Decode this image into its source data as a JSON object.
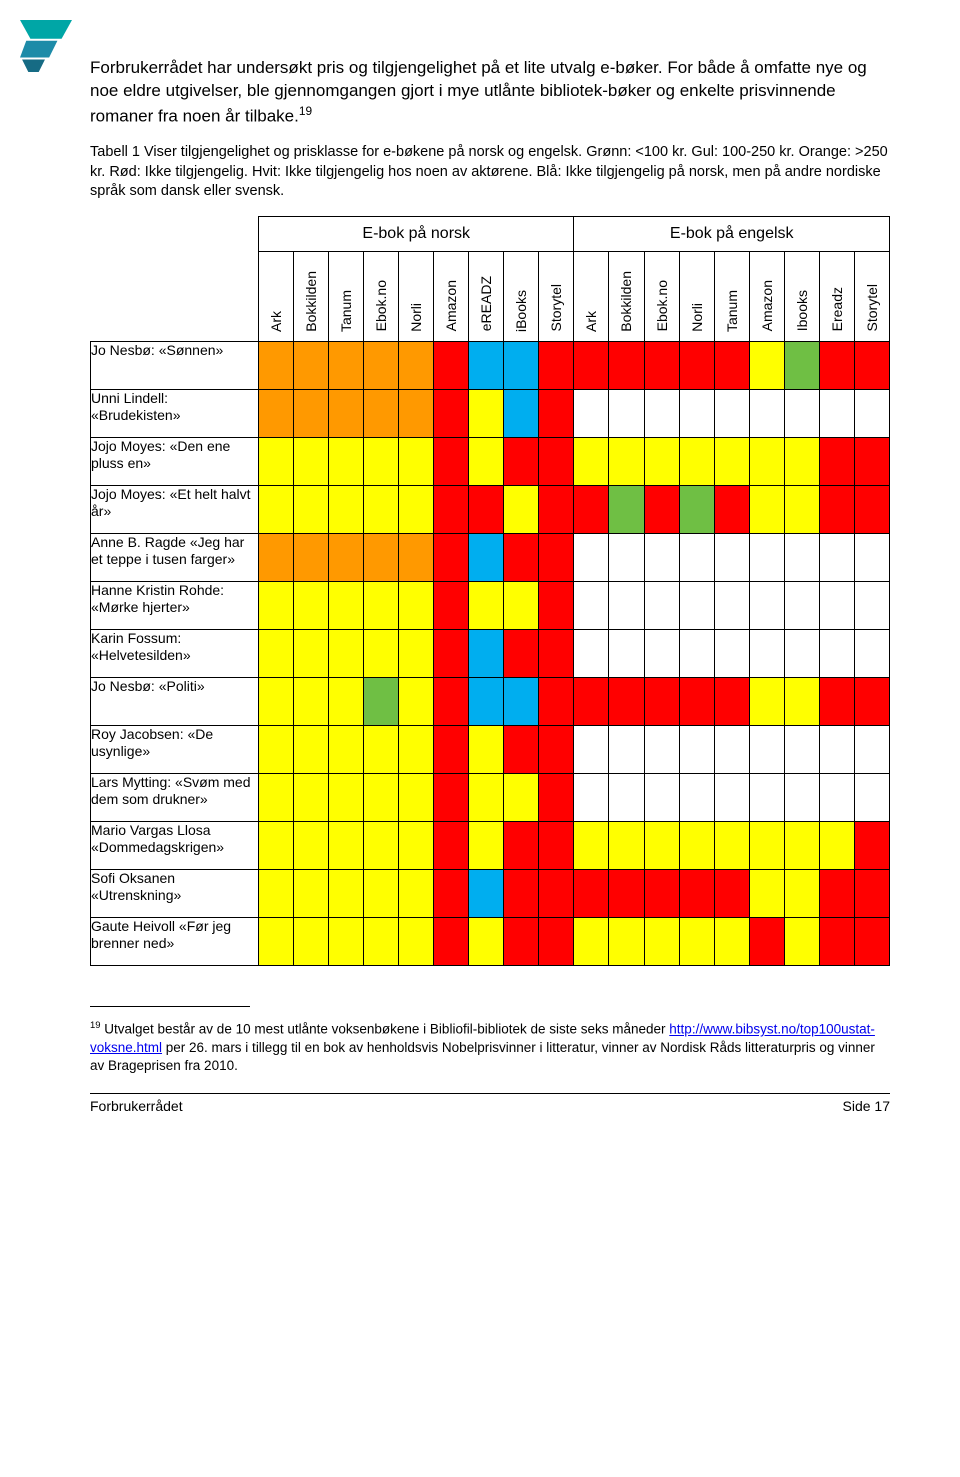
{
  "intro": "Forbrukerrådet har undersøkt pris og tilgjengelighet på et lite utvalg e-bøker. For både å omfatte nye og noe eldre utgivelser, ble gjennomgangen gjort i mye utlånte bibliotek-bøker og enkelte prisvinnende romaner fra noen år tilbake.",
  "intro_sup": "19",
  "caption": "Tabell 1 Viser tilgjengelighet og prisklasse for e-bøkene på norsk og engelsk. Grønn: <100 kr. Gul: 100-250 kr. Orange: >250 kr. Rød: Ikke tilgjengelig. Hvit: Ikke tilgjengelig hos noen av aktørene. Blå: Ikke tilgjengelig på norsk, men på andre nordiske språk som dansk eller svensk.",
  "group_norsk": "E-bok på norsk",
  "group_engelsk": "E-bok på engelsk",
  "columns_norsk": [
    "Ark",
    "Bokkilden",
    "Tanum",
    "Ebok.no",
    "Norli",
    "Amazon",
    "eREADZ",
    "iBooks",
    "Storytel"
  ],
  "columns_engelsk": [
    "Ark",
    "Bokkilden",
    "Ebok.no",
    "Norli",
    "Tanum",
    "Amazon",
    "Ibooks",
    "Ereadz",
    "Storytel"
  ],
  "colors": {
    "green": "#6fbf44",
    "yellow": "#ffff00",
    "orange": "#ff9900",
    "red": "#ff0000",
    "white": "#ffffff",
    "blue": "#00aeef"
  },
  "rows": [
    {
      "label": "Jo Nesbø: «Sønnen»",
      "cells": [
        "orange",
        "orange",
        "orange",
        "orange",
        "orange",
        "red",
        "blue",
        "blue",
        "red",
        "red",
        "red",
        "red",
        "red",
        "red",
        "yellow",
        "green",
        "red",
        "red"
      ]
    },
    {
      "label": "Unni Lindell: «Brudekisten»",
      "cells": [
        "orange",
        "orange",
        "orange",
        "orange",
        "orange",
        "red",
        "yellow",
        "blue",
        "red",
        "white",
        "white",
        "white",
        "white",
        "white",
        "white",
        "white",
        "white",
        "white"
      ]
    },
    {
      "label": "Jojo Moyes: «Den ene pluss en»",
      "cells": [
        "yellow",
        "yellow",
        "yellow",
        "yellow",
        "yellow",
        "red",
        "yellow",
        "red",
        "red",
        "yellow",
        "yellow",
        "yellow",
        "yellow",
        "yellow",
        "yellow",
        "yellow",
        "red",
        "red"
      ]
    },
    {
      "label": "Jojo Moyes: «Et helt halvt år»",
      "cells": [
        "yellow",
        "yellow",
        "yellow",
        "yellow",
        "yellow",
        "red",
        "red",
        "yellow",
        "red",
        "red",
        "green",
        "red",
        "green",
        "red",
        "yellow",
        "yellow",
        "red",
        "red"
      ]
    },
    {
      "label": "Anne B. Ragde «Jeg har et teppe i tusen farger»",
      "cells": [
        "orange",
        "orange",
        "orange",
        "orange",
        "orange",
        "red",
        "blue",
        "red",
        "red",
        "white",
        "white",
        "white",
        "white",
        "white",
        "white",
        "white",
        "white",
        "white"
      ]
    },
    {
      "label": "Hanne Kristin Rohde: «Mørke hjerter»",
      "cells": [
        "yellow",
        "yellow",
        "yellow",
        "yellow",
        "yellow",
        "red",
        "yellow",
        "yellow",
        "red",
        "white",
        "white",
        "white",
        "white",
        "white",
        "white",
        "white",
        "white",
        "white"
      ]
    },
    {
      "label": "Karin Fossum: «Helvetesilden»",
      "cells": [
        "yellow",
        "yellow",
        "yellow",
        "yellow",
        "yellow",
        "red",
        "blue",
        "red",
        "red",
        "white",
        "white",
        "white",
        "white",
        "white",
        "white",
        "white",
        "white",
        "white"
      ]
    },
    {
      "label": "Jo Nesbø: «Politi»",
      "cells": [
        "yellow",
        "yellow",
        "yellow",
        "green",
        "yellow",
        "red",
        "blue",
        "blue",
        "red",
        "red",
        "red",
        "red",
        "red",
        "red",
        "yellow",
        "yellow",
        "red",
        "red"
      ]
    },
    {
      "label": "Roy Jacobsen: «De usynlige»",
      "cells": [
        "yellow",
        "yellow",
        "yellow",
        "yellow",
        "yellow",
        "red",
        "yellow",
        "red",
        "red",
        "white",
        "white",
        "white",
        "white",
        "white",
        "white",
        "white",
        "white",
        "white"
      ]
    },
    {
      "label": "Lars Mytting: «Svøm med dem som drukner»",
      "cells": [
        "yellow",
        "yellow",
        "yellow",
        "yellow",
        "yellow",
        "red",
        "yellow",
        "yellow",
        "red",
        "white",
        "white",
        "white",
        "white",
        "white",
        "white",
        "white",
        "white",
        "white"
      ]
    },
    {
      "label": "Mario Vargas Llosa «Dommedagskrigen»",
      "cells": [
        "yellow",
        "yellow",
        "yellow",
        "yellow",
        "yellow",
        "red",
        "yellow",
        "red",
        "red",
        "yellow",
        "yellow",
        "yellow",
        "yellow",
        "yellow",
        "yellow",
        "yellow",
        "yellow",
        "red"
      ]
    },
    {
      "label": "Sofi Oksanen «Utrenskning»",
      "cells": [
        "yellow",
        "yellow",
        "yellow",
        "yellow",
        "yellow",
        "red",
        "blue",
        "red",
        "red",
        "red",
        "red",
        "red",
        "red",
        "red",
        "yellow",
        "yellow",
        "red",
        "red"
      ]
    },
    {
      "label": "Gaute Heivoll «Før jeg brenner ned»",
      "cells": [
        "yellow",
        "yellow",
        "yellow",
        "yellow",
        "yellow",
        "red",
        "yellow",
        "red",
        "red",
        "yellow",
        "yellow",
        "yellow",
        "yellow",
        "yellow",
        "red",
        "yellow",
        "red",
        "red"
      ]
    }
  ],
  "footnote_num": "19",
  "footnote_text_a": " Utvalget består av de 10 mest utlånte voksenbøkene i Bibliofil-bibliotek de siste seks måneder ",
  "footnote_link": "http://www.bibsyst.no/top100ustat-voksne.html",
  "footnote_text_b": " per 26. mars i tillegg til en bok av henholdsvis Nobelprisvinner i litteratur, vinner av Nordisk Råds litteraturpris og vinner av Brageprisen fra 2010.",
  "footer_left": "Forbrukerrådet",
  "footer_right": "Side 17"
}
